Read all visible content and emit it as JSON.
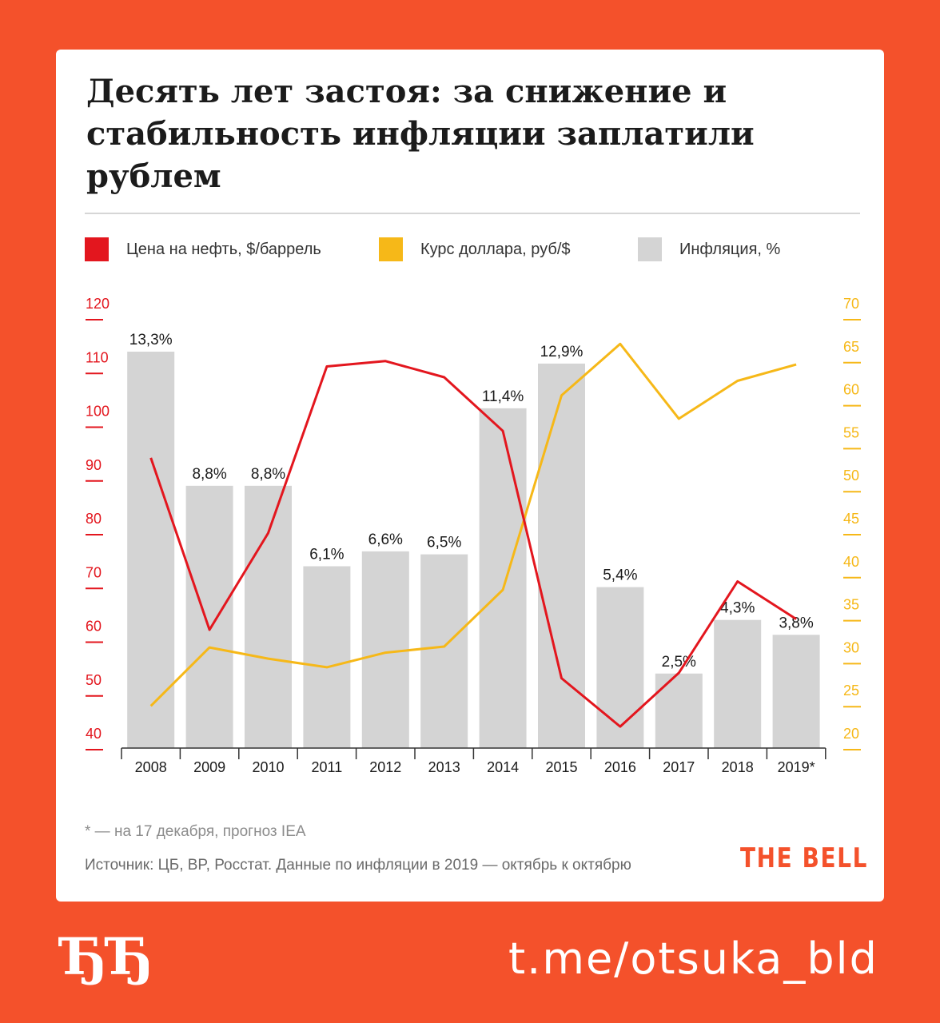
{
  "title": "Десять лет застоя: за снижение и стабильность инфляции заплатили рублем",
  "legend": {
    "oil": "Цена на нефть, $/баррель",
    "usd": "Курс доллара,  руб/$",
    "inflation": "Инфляция, %"
  },
  "colors": {
    "oil": "#e3161e",
    "usd": "#f6b818",
    "inflation": "#d4d4d4",
    "brand": "#f4512b",
    "text": "#1b1b1b"
  },
  "chart_data": {
    "type": "bar",
    "categories": [
      "2008",
      "2009",
      "2010",
      "2011",
      "2012",
      "2013",
      "2014",
      "2015",
      "2016",
      "2017",
      "2018",
      "2019*"
    ],
    "series": [
      {
        "name": "Инфляция, %",
        "type": "bar",
        "axis": "none",
        "values": [
          13.3,
          8.8,
          8.8,
          6.1,
          6.6,
          6.5,
          11.4,
          12.9,
          5.4,
          2.5,
          4.3,
          3.8
        ],
        "labels": [
          "13,3%",
          "8,8%",
          "8,8%",
          "6,1%",
          "6,6%",
          "6,5%",
          "11,4%",
          "12,9%",
          "5,4%",
          "2,5%",
          "4,3%",
          "3,8%"
        ]
      },
      {
        "name": "Цена на нефть, $/баррель",
        "type": "line",
        "axis": "left",
        "values": [
          94,
          62,
          80,
          111,
          112,
          109,
          99,
          53,
          44,
          54,
          71,
          64
        ]
      },
      {
        "name": "Курс доллара,  руб/$",
        "type": "line",
        "axis": "right",
        "values": [
          24.9,
          31.7,
          30.4,
          29.4,
          31.1,
          31.8,
          38.4,
          61.0,
          67.0,
          58.3,
          62.7,
          64.6
        ]
      }
    ],
    "y_left": {
      "range": [
        40,
        120
      ],
      "ticks": [
        "40",
        "50",
        "60",
        "70",
        "80",
        "90",
        "100",
        "110",
        "120"
      ]
    },
    "y_right": {
      "range": [
        20,
        70
      ],
      "ticks": [
        "20",
        "25",
        "30",
        "35",
        "40",
        "45",
        "50",
        "55",
        "60",
        "65",
        "70"
      ]
    },
    "grid": false,
    "legend_position": "top"
  },
  "notes": {
    "footnote": "* — на 17 декабря,  прогноз IEA",
    "source": "Источник:  ЦБ, BP, Росстат. Данные по инфляции в 2019 — октябрь к октябрю"
  },
  "brand": "THE BELL",
  "logo": "ЂЂ",
  "handle": "t.me/otsuka_bld"
}
